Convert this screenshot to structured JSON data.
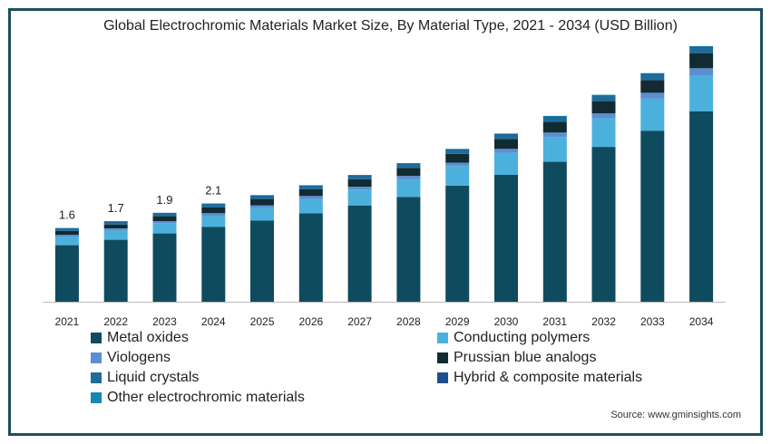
{
  "chart_data": {
    "type": "bar",
    "stacked": true,
    "title": "Global Electrochromic Materials Market Size, By Material Type, 2021 - 2034 (USD Billion)",
    "categories": [
      "2021",
      "2022",
      "2023",
      "2024",
      "2025",
      "2026",
      "2027",
      "2028",
      "2029",
      "2030",
      "2031",
      "2032",
      "2033",
      "2034"
    ],
    "totals_labels": [
      "1.6",
      "1.7",
      "1.9",
      "2.1",
      "",
      "",
      "",
      "",
      "",
      "",
      "",
      "",
      "",
      ""
    ],
    "series": [
      {
        "name": "Metal oxides",
        "color": "#0f4b5e",
        "values": [
          1.15,
          1.26,
          1.39,
          1.52,
          1.65,
          1.8,
          1.96,
          2.13,
          2.36,
          2.58,
          2.85,
          3.15,
          3.48,
          3.87
        ]
      },
      {
        "name": "Conducting polymers",
        "color": "#4cb0dd",
        "values": [
          0.17,
          0.19,
          0.21,
          0.23,
          0.26,
          0.29,
          0.32,
          0.36,
          0.4,
          0.45,
          0.5,
          0.58,
          0.65,
          0.73
        ]
      },
      {
        "name": "Viologens",
        "color": "#5b8fd1",
        "values": [
          0.04,
          0.04,
          0.04,
          0.05,
          0.05,
          0.06,
          0.06,
          0.07,
          0.07,
          0.08,
          0.09,
          0.1,
          0.12,
          0.15
        ]
      },
      {
        "name": "Prussian blue analogs",
        "color": "#122b33",
        "values": [
          0.08,
          0.08,
          0.1,
          0.12,
          0.13,
          0.14,
          0.15,
          0.16,
          0.18,
          0.2,
          0.22,
          0.25,
          0.26,
          0.3
        ]
      },
      {
        "name": "Liquid crystals",
        "color": "#1e6d99",
        "values": [
          0.04,
          0.05,
          0.05,
          0.06,
          0.06,
          0.06,
          0.07,
          0.08,
          0.08,
          0.09,
          0.1,
          0.11,
          0.12,
          0.13
        ]
      },
      {
        "name": "Hybrid & composite materials",
        "color": "#1f4e8c",
        "values": [
          0.01,
          0.01,
          0.01,
          0.01,
          0.01,
          0.01,
          0.01,
          0.01,
          0.01,
          0.01,
          0.01,
          0.01,
          0.01,
          0.01
        ]
      },
      {
        "name": "Other electrochromic materials",
        "color": "#1788b4",
        "values": [
          0.01,
          0.01,
          0.01,
          0.01,
          0.01,
          0.01,
          0.01,
          0.01,
          0.01,
          0.01,
          0.01,
          0.01,
          0.01,
          0.01
        ]
      }
    ],
    "ylim": [
      0,
      5.4
    ],
    "grid": false,
    "legend_position": "bottom"
  },
  "source": "Source: www.gminsights.com"
}
